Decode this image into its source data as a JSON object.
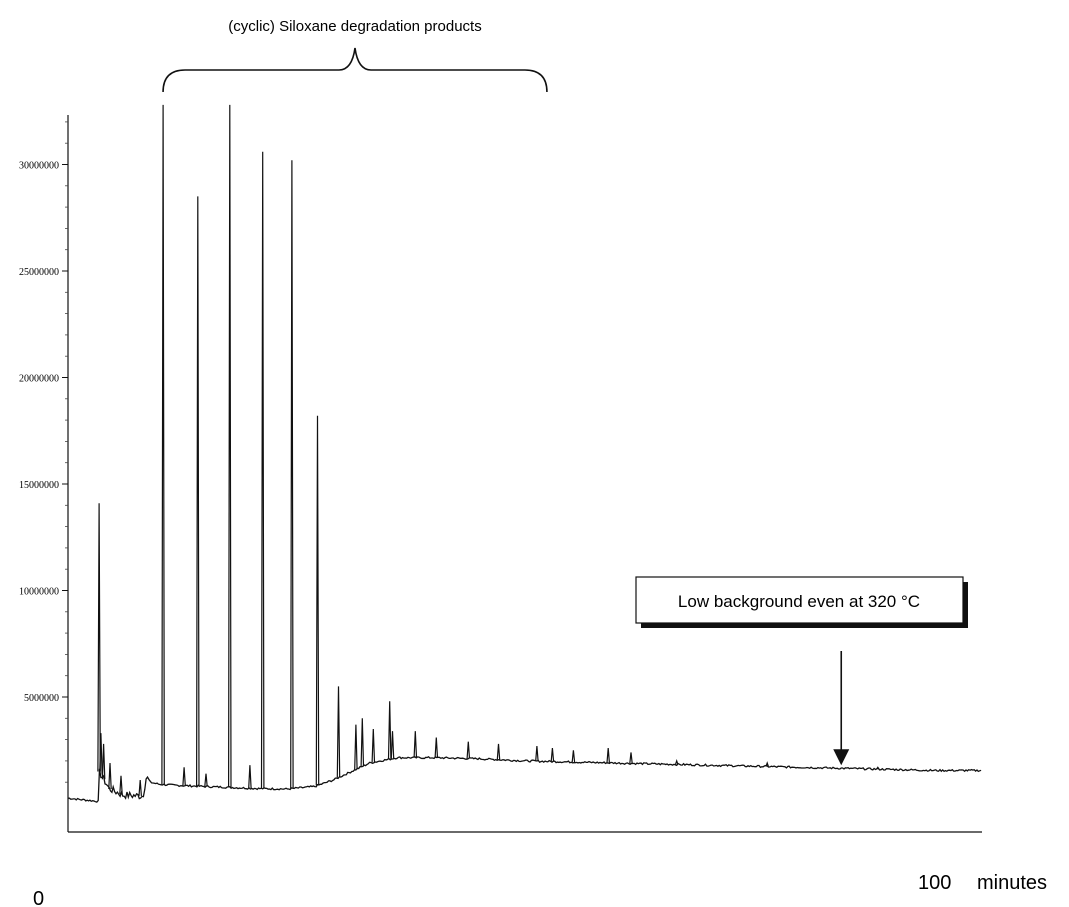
{
  "chart_data": {
    "type": "line",
    "title": "",
    "xlabel": "",
    "ylabel": "",
    "xlim": [
      0,
      100
    ],
    "ylim": [
      -1500000,
      33000000
    ],
    "yticks": [
      5000000,
      10000000,
      15000000,
      20000000,
      25000000,
      30000000
    ],
    "ytick_labels": [
      "5000000",
      "10000000",
      "15000000",
      "20000000",
      "25000000",
      "30000000"
    ],
    "x_edge_labels": {
      "left": "0",
      "right": "100",
      "unit": "minutes"
    },
    "grid": false,
    "legend": "none",
    "series_color": "#111111",
    "baseline": [
      [
        0,
        250000
      ],
      [
        3.3,
        100000
      ],
      [
        3.4,
        1500000
      ],
      [
        4.5,
        700000
      ],
      [
        6,
        400000
      ],
      [
        8.2,
        350000
      ],
      [
        8.6,
        1300000
      ],
      [
        9,
        1000000
      ],
      [
        10,
        900000
      ],
      [
        12,
        850000
      ],
      [
        15,
        800000
      ],
      [
        18,
        750000
      ],
      [
        21,
        700000
      ],
      [
        24,
        680000
      ],
      [
        27,
        800000
      ],
      [
        29,
        1100000
      ],
      [
        31,
        1500000
      ],
      [
        33,
        1900000
      ],
      [
        36,
        2150000
      ],
      [
        40,
        2150000
      ],
      [
        45,
        2100000
      ],
      [
        50,
        2000000
      ],
      [
        55,
        1950000
      ],
      [
        60,
        1900000
      ],
      [
        65,
        1850000
      ],
      [
        70,
        1800000
      ],
      [
        75,
        1750000
      ],
      [
        80,
        1700000
      ],
      [
        85,
        1650000
      ],
      [
        90,
        1600000
      ],
      [
        95,
        1550000
      ],
      [
        100,
        1550000
      ]
    ],
    "peaks": [
      {
        "x": 3.4,
        "y": 14100000
      },
      {
        "x": 3.6,
        "y": 3300000
      },
      {
        "x": 3.9,
        "y": 2800000
      },
      {
        "x": 4.6,
        "y": 1900000
      },
      {
        "x": 5.8,
        "y": 1300000
      },
      {
        "x": 7.9,
        "y": 1100000
      },
      {
        "x": 10.4,
        "y": 32800000
      },
      {
        "x": 12.7,
        "y": 1700000
      },
      {
        "x": 14.2,
        "y": 28500000
      },
      {
        "x": 15.1,
        "y": 1400000
      },
      {
        "x": 17.7,
        "y": 32800000
      },
      {
        "x": 19.9,
        "y": 1800000
      },
      {
        "x": 21.3,
        "y": 30600000
      },
      {
        "x": 24.5,
        "y": 30200000
      },
      {
        "x": 27.3,
        "y": 18200000
      },
      {
        "x": 29.6,
        "y": 5500000
      },
      {
        "x": 31.5,
        "y": 3700000
      },
      {
        "x": 32.2,
        "y": 4000000
      },
      {
        "x": 33.4,
        "y": 3500000
      },
      {
        "x": 35.2,
        "y": 4800000
      },
      {
        "x": 35.5,
        "y": 3400000
      },
      {
        "x": 38.0,
        "y": 3400000
      },
      {
        "x": 40.3,
        "y": 3100000
      },
      {
        "x": 43.8,
        "y": 2900000
      },
      {
        "x": 47.1,
        "y": 2800000
      },
      {
        "x": 51.3,
        "y": 2700000
      },
      {
        "x": 53.0,
        "y": 2600000
      },
      {
        "x": 55.3,
        "y": 2500000
      },
      {
        "x": 59.1,
        "y": 2600000
      },
      {
        "x": 61.6,
        "y": 2400000
      },
      {
        "x": 66.6,
        "y": 2000000
      },
      {
        "x": 76.5,
        "y": 1900000
      },
      {
        "x": 88.6,
        "y": 1700000
      }
    ],
    "annotations": [
      {
        "text": "(cyclic) Siloxane degradation products",
        "type": "brace",
        "x_start": 10.4,
        "x_end": 52.4
      },
      {
        "text": "Low background even at 320 °C",
        "type": "callout-arrow",
        "arrow_x": 84.6,
        "arrow_y": 1700000
      }
    ]
  }
}
